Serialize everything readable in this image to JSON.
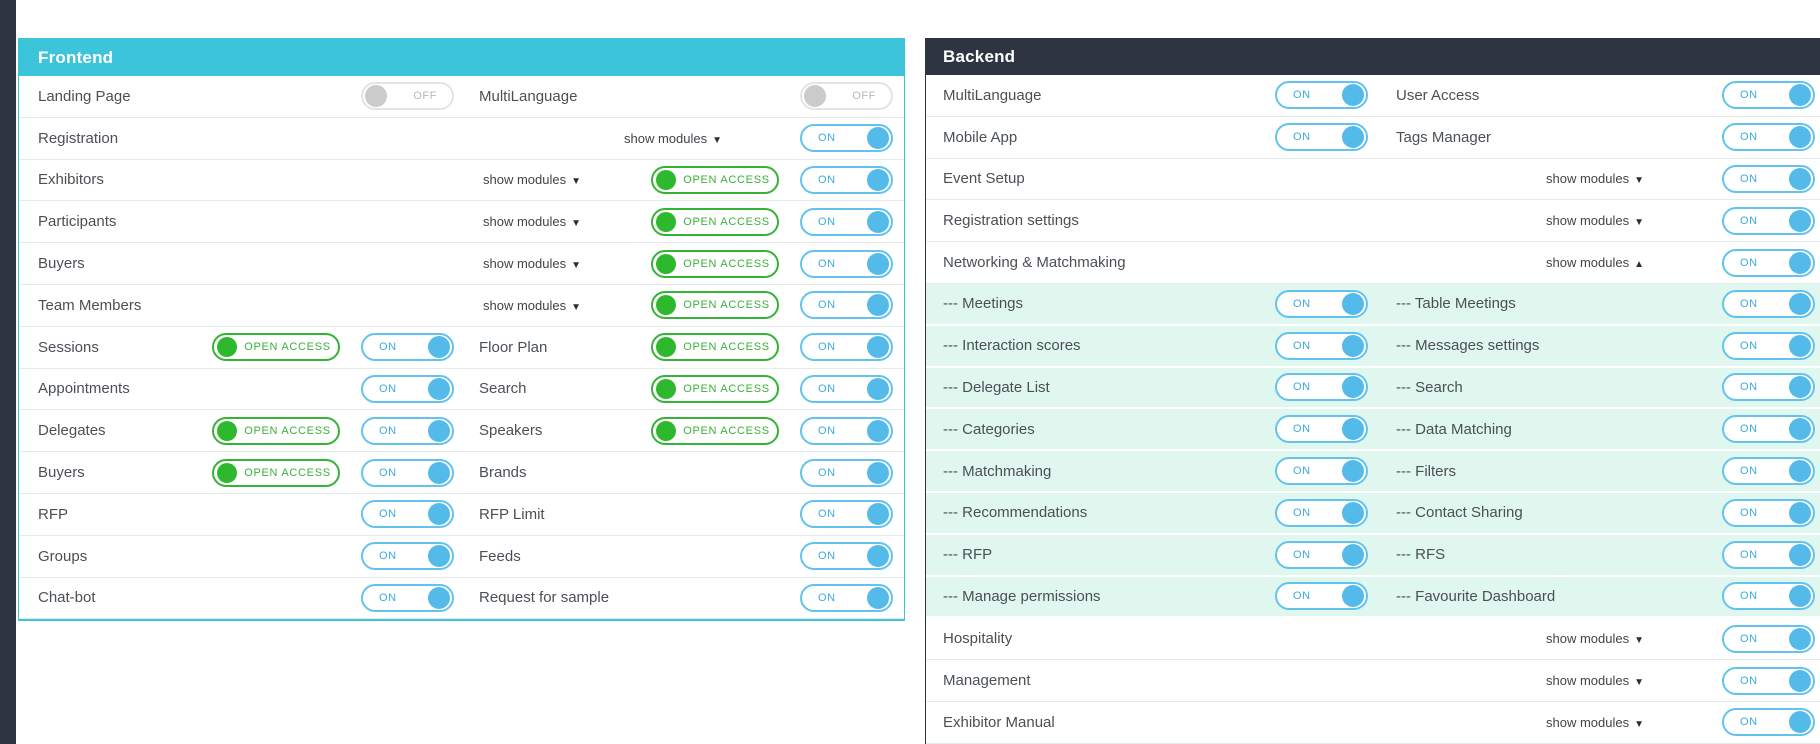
{
  "labels": {
    "show_modules": "show modules",
    "open_access": "OPEN ACCESS",
    "on": "ON",
    "off": "OFF",
    "arrow_down": "▼",
    "arrow_up": "▲"
  },
  "colors": {
    "frontend_header": "#3cc4da",
    "backend_header": "#2e3441",
    "open_access_green": "#2eb82e",
    "toggle_blue": "#54baea",
    "toggle_off_gray": "#cbcbcb",
    "submodule_row_bg": "#dff7ef"
  },
  "frontend": {
    "title": "Frontend",
    "rows": [
      {
        "left": {
          "label": "Landing Page",
          "toggle": "off"
        },
        "right": {
          "label": "MultiLanguage",
          "toggle": "off"
        }
      },
      {
        "label": "Registration",
        "show_modules": "down",
        "toggle": "on"
      },
      {
        "label": "Exhibitors",
        "show_modules": "down",
        "open_access": true,
        "toggle": "on"
      },
      {
        "label": "Participants",
        "show_modules": "down",
        "open_access": true,
        "toggle": "on"
      },
      {
        "label": "Buyers",
        "show_modules": "down",
        "open_access": true,
        "toggle": "on"
      },
      {
        "label": "Team Members",
        "show_modules": "down",
        "open_access": true,
        "toggle": "on"
      },
      {
        "left": {
          "label": "Sessions",
          "open_access": true,
          "toggle": "on"
        },
        "right": {
          "label": "Floor Plan",
          "open_access": true,
          "toggle": "on"
        }
      },
      {
        "left": {
          "label": "Appointments",
          "toggle": "on"
        },
        "right": {
          "label": "Search",
          "open_access": true,
          "toggle": "on"
        }
      },
      {
        "left": {
          "label": "Delegates",
          "open_access": true,
          "toggle": "on"
        },
        "right": {
          "label": "Speakers",
          "open_access": true,
          "toggle": "on"
        }
      },
      {
        "left": {
          "label": "Buyers",
          "open_access": true,
          "toggle": "on"
        },
        "right": {
          "label": "Brands",
          "toggle": "on"
        }
      },
      {
        "left": {
          "label": "RFP",
          "toggle": "on"
        },
        "right": {
          "label": "RFP Limit",
          "toggle": "on"
        }
      },
      {
        "left": {
          "label": "Groups",
          "toggle": "on"
        },
        "right": {
          "label": "Feeds",
          "toggle": "on"
        }
      },
      {
        "left": {
          "label": "Chat-bot",
          "toggle": "on"
        },
        "right": {
          "label": "Request for sample",
          "toggle": "on"
        }
      }
    ]
  },
  "backend": {
    "title": "Backend",
    "rows": [
      {
        "left": {
          "label": "MultiLanguage",
          "toggle": "on"
        },
        "right": {
          "label": "User Access",
          "toggle": "on"
        }
      },
      {
        "left": {
          "label": "Mobile App",
          "toggle": "on"
        },
        "right": {
          "label": "Tags Manager",
          "toggle": "on"
        }
      },
      {
        "label": "Event Setup",
        "show_modules": "down",
        "toggle": "on"
      },
      {
        "label": "Registration settings",
        "show_modules": "down",
        "toggle": "on"
      },
      {
        "label": "Networking & Matchmaking",
        "show_modules": "up",
        "toggle": "on"
      },
      {
        "sub": true,
        "left": {
          "label": "--- Meetings",
          "toggle": "on"
        },
        "right": {
          "label": "--- Table Meetings",
          "toggle": "on"
        }
      },
      {
        "sub": true,
        "left": {
          "label": "--- Interaction scores",
          "toggle": "on"
        },
        "right": {
          "label": "--- Messages settings",
          "toggle": "on"
        }
      },
      {
        "sub": true,
        "left": {
          "label": "--- Delegate List",
          "toggle": "on"
        },
        "right": {
          "label": "--- Search",
          "toggle": "on"
        }
      },
      {
        "sub": true,
        "left": {
          "label": "--- Categories",
          "toggle": "on"
        },
        "right": {
          "label": "--- Data Matching",
          "toggle": "on"
        }
      },
      {
        "sub": true,
        "left": {
          "label": "--- Matchmaking",
          "toggle": "on"
        },
        "right": {
          "label": "--- Filters",
          "toggle": "on"
        }
      },
      {
        "sub": true,
        "left": {
          "label": "--- Recommendations",
          "toggle": "on"
        },
        "right": {
          "label": "--- Contact Sharing",
          "toggle": "on"
        }
      },
      {
        "sub": true,
        "left": {
          "label": "--- RFP",
          "toggle": "on"
        },
        "right": {
          "label": "--- RFS",
          "toggle": "on"
        }
      },
      {
        "sub": true,
        "left": {
          "label": "--- Manage permissions",
          "toggle": "on"
        },
        "right": {
          "label": "--- Favourite Dashboard",
          "toggle": "on"
        }
      },
      {
        "label": "Hospitality",
        "show_modules": "down",
        "toggle": "on"
      },
      {
        "label": "Management",
        "show_modules": "down",
        "toggle": "on"
      },
      {
        "label": "Exhibitor Manual",
        "show_modules": "down",
        "toggle": "on"
      }
    ]
  }
}
